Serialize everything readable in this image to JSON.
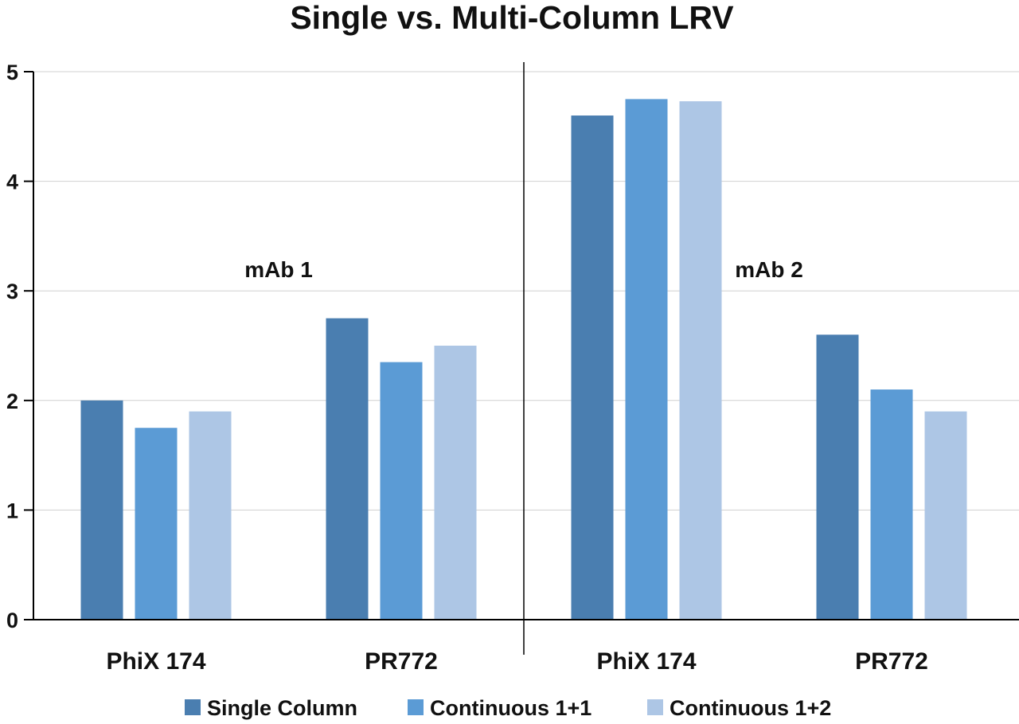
{
  "chart_data": {
    "type": "bar",
    "title": "Single vs. Multi-Column LRV",
    "xlabel": "",
    "ylabel": "",
    "ylim": [
      0,
      5
    ],
    "yticks": [
      0,
      1,
      2,
      3,
      4,
      5
    ],
    "grid": true,
    "legend_position": "bottom",
    "groups": [
      "mAb 1",
      "mAb 2"
    ],
    "categories": [
      "PhiX 174",
      "PR772",
      "PhiX 174",
      "PR772"
    ],
    "category_group": [
      0,
      0,
      1,
      1
    ],
    "series": [
      {
        "name": "Single Column",
        "color": "#4a7eb0",
        "values": [
          2.0,
          2.75,
          4.6,
          2.6
        ]
      },
      {
        "name": "Continuous 1+1",
        "color": "#5b9bd5",
        "values": [
          1.75,
          2.35,
          4.75,
          2.1
        ]
      },
      {
        "name": "Continuous 1+2",
        "color": "#adc6e5",
        "values": [
          1.9,
          2.5,
          4.73,
          1.9
        ]
      }
    ]
  }
}
